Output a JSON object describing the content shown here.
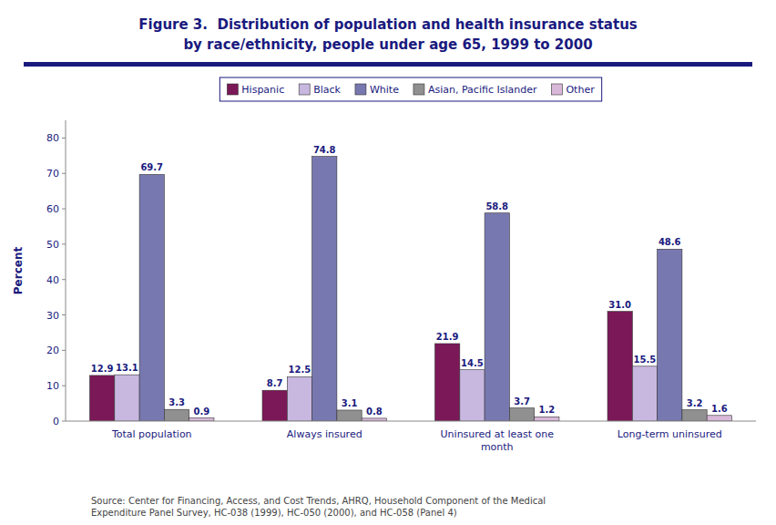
{
  "chart_data": {
    "type": "bar",
    "title": "Figure 3.  Distribution of population and health insurance status\nby race/ethnicity, people under age 65, 1999 to 2000",
    "categories": [
      "Total population",
      "Always insured",
      "Uninsured at least one\nmonth",
      "Long-term uninsured"
    ],
    "series": [
      {
        "name": "Hispanic",
        "color": "#7b1857",
        "values": [
          12.9,
          8.7,
          21.9,
          31.0
        ],
        "value_labels": [
          "12.9",
          "8.7",
          "21.9",
          "31.0"
        ]
      },
      {
        "name": "Black",
        "color": "#c8b8e0",
        "values": [
          13.1,
          12.5,
          14.5,
          15.5
        ]
      },
      {
        "name": "White",
        "color": "#7878b0",
        "values": [
          69.7,
          74.8,
          58.8,
          48.6
        ]
      },
      {
        "name": "Asian, Pacific Islander",
        "color": "#909090",
        "values": [
          3.3,
          3.1,
          3.7,
          3.2
        ]
      },
      {
        "name": "Other",
        "color": "#d8b8d8",
        "values": [
          0.9,
          0.8,
          1.2,
          1.6
        ]
      }
    ],
    "ylabel": "Percent",
    "ylim": [
      0,
      85
    ],
    "yticks": [
      0,
      10,
      20,
      30,
      40,
      50,
      60,
      70,
      80
    ],
    "grid": false,
    "legend": "top",
    "data_labels": true,
    "annotations": [
      "Source: Center for Financing, Access, and Cost Trends, AHRQ, Household Component of the Medical\nExpenditure Panel Survey, HC-038 (1999), HC-050 (2000), and HC-058 (Panel 4)"
    ]
  }
}
